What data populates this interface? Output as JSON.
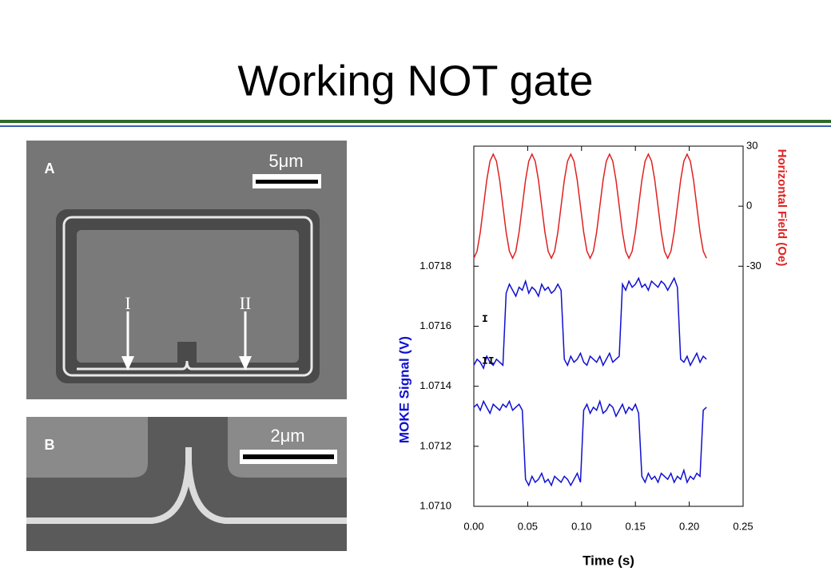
{
  "slide": {
    "title": "Working NOT gate"
  },
  "panels": [
    {
      "label": "A",
      "scale_bar": "5μm",
      "markers": [
        "I",
        "II"
      ]
    },
    {
      "label": "B",
      "scale_bar": "2μm"
    }
  ],
  "chart_data": {
    "type": "line",
    "x_label": "Time (s)",
    "y_label": "MOKE Signal (V)",
    "y2_label": "Horizontal Field (Oe)",
    "x": [
      0,
      0.003,
      0.006,
      0.009,
      0.012,
      0.015,
      0.018,
      0.021,
      0.024,
      0.027,
      0.03,
      0.033,
      0.036,
      0.039,
      0.042,
      0.045,
      0.048,
      0.051,
      0.054,
      0.057,
      0.06,
      0.063,
      0.066,
      0.069,
      0.072,
      0.075,
      0.078,
      0.081,
      0.084,
      0.087,
      0.09,
      0.093,
      0.096,
      0.099,
      0.102,
      0.105,
      0.108,
      0.111,
      0.114,
      0.117,
      0.12,
      0.123,
      0.126,
      0.129,
      0.132,
      0.135,
      0.138,
      0.141,
      0.144,
      0.147,
      0.15,
      0.153,
      0.156,
      0.159,
      0.162,
      0.165,
      0.168,
      0.171,
      0.174,
      0.177,
      0.18,
      0.183,
      0.186,
      0.189,
      0.192,
      0.195,
      0.198,
      0.201,
      0.204,
      0.207,
      0.21,
      0.213,
      0.216
    ],
    "series": [
      {
        "color": "#e02020",
        "axis": "y2",
        "values": [
          -26,
          -22.5,
          -13,
          0,
          13,
          22.5,
          26,
          22.5,
          13,
          0,
          -13,
          -22.5,
          -26,
          -22.5,
          -13,
          0,
          13,
          22.5,
          26,
          22.5,
          13,
          0,
          -13,
          -22.5,
          -26,
          -22.5,
          -13,
          0,
          13,
          22.5,
          26,
          22.5,
          13,
          0,
          -13,
          -22.5,
          -26,
          -22.5,
          -13,
          0,
          13,
          22.5,
          26,
          22.5,
          13,
          0,
          -13,
          -22.5,
          -26,
          -22.5,
          -13,
          0,
          13,
          22.5,
          26,
          22.5,
          13,
          0,
          -13,
          -22.5,
          -26,
          -22.5,
          -13,
          0,
          13,
          22.5,
          26,
          22.5,
          13,
          0,
          -13,
          -22.5,
          -26
        ]
      },
      {
        "name": "I",
        "color": "#1010d0",
        "values": [
          1.07147,
          1.07149,
          1.07148,
          1.07146,
          1.0715,
          1.07148,
          1.07147,
          1.07149,
          1.07148,
          1.07147,
          1.07171,
          1.07174,
          1.07172,
          1.0717,
          1.07173,
          1.07172,
          1.07175,
          1.07171,
          1.07173,
          1.07172,
          1.0717,
          1.07174,
          1.07172,
          1.07173,
          1.07171,
          1.07172,
          1.07174,
          1.07172,
          1.07149,
          1.07147,
          1.0715,
          1.07148,
          1.07149,
          1.07151,
          1.07148,
          1.07147,
          1.0715,
          1.07149,
          1.07148,
          1.0715,
          1.07147,
          1.07149,
          1.07151,
          1.07148,
          1.07149,
          1.0715,
          1.07174,
          1.07172,
          1.07175,
          1.07173,
          1.07174,
          1.07176,
          1.07173,
          1.07174,
          1.07172,
          1.07175,
          1.07174,
          1.07173,
          1.07175,
          1.07174,
          1.07172,
          1.07174,
          1.07176,
          1.07173,
          1.07149,
          1.07148,
          1.0715,
          1.07147,
          1.07149,
          1.07151,
          1.07148,
          1.0715,
          1.07149
        ]
      },
      {
        "name": "II",
        "color": "#1010d0",
        "values": [
          1.07133,
          1.07134,
          1.07132,
          1.07135,
          1.07133,
          1.07131,
          1.07134,
          1.07133,
          1.07132,
          1.07134,
          1.07133,
          1.07135,
          1.07132,
          1.07133,
          1.07134,
          1.07132,
          1.07109,
          1.07107,
          1.0711,
          1.07108,
          1.07109,
          1.07111,
          1.07108,
          1.07109,
          1.07107,
          1.0711,
          1.07109,
          1.07108,
          1.0711,
          1.07109,
          1.07107,
          1.07109,
          1.07111,
          1.07108,
          1.07132,
          1.07134,
          1.07131,
          1.07133,
          1.07132,
          1.07135,
          1.07131,
          1.07132,
          1.07134,
          1.07133,
          1.0713,
          1.07132,
          1.07134,
          1.07131,
          1.07133,
          1.07132,
          1.07134,
          1.07131,
          1.0711,
          1.07108,
          1.07111,
          1.07109,
          1.0711,
          1.07108,
          1.07111,
          1.0711,
          1.07109,
          1.07111,
          1.07108,
          1.0711,
          1.07109,
          1.07112,
          1.07108,
          1.0711,
          1.07109,
          1.07111,
          1.0711,
          1.07132,
          1.07133
        ]
      }
    ],
    "xlim": [
      0,
      0.25
    ],
    "xticks": [
      {
        "value": 0,
        "label": "0.00"
      },
      {
        "value": 0.05,
        "label": "0.05"
      },
      {
        "value": 0.1,
        "label": "0.10"
      },
      {
        "value": 0.15,
        "label": "0.15"
      },
      {
        "value": 0.2,
        "label": "0.20"
      },
      {
        "value": 0.25,
        "label": "0.25"
      }
    ],
    "ylim": [
      1.071,
      1.0722
    ],
    "yticks": [
      {
        "value": 1.071,
        "label": "1.0710"
      },
      1.0712,
      1.0714,
      1.0716,
      1.0718
    ],
    "y2lim": [
      -150,
      30
    ],
    "y2ticks": [
      -30,
      0,
      30
    ],
    "y_label_color": "#1010d0",
    "y2_label_color": "#e02020"
  }
}
